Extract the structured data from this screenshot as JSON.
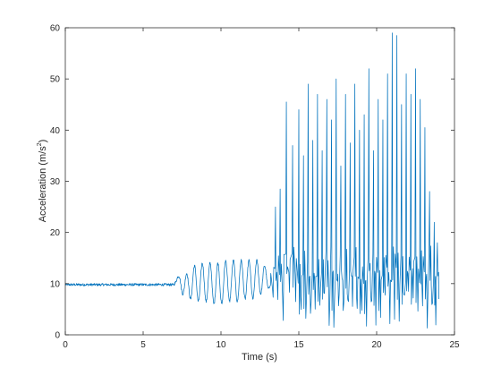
{
  "chart_data": {
    "type": "line",
    "title": "",
    "xlabel": "Time (s)",
    "ylabel": "Acceleration (m/s²)",
    "ylabel_base": "Acceleration (m/s",
    "ylabel_sup": "2",
    "ylabel_tail": ")",
    "xlim": [
      0,
      25
    ],
    "ylim": [
      0,
      60
    ],
    "xticks": [
      0,
      5,
      10,
      15,
      20,
      25
    ],
    "yticks": [
      0,
      10,
      20,
      30,
      40,
      50,
      60
    ],
    "grid": false,
    "legend": "none",
    "line_color": "#0072BD",
    "axis_color": "#262626",
    "series": [
      {
        "sample_interval_s": 0.02,
        "segments": [
          {
            "start_s": 0.0,
            "end_s": 7.0,
            "pattern": "noise",
            "baseline": 9.8,
            "amplitude": 0.25
          },
          {
            "start_s": 7.0,
            "end_s": 13.2,
            "pattern": "oscillation",
            "baseline": 10,
            "peaks": [
              [
                7.3,
                11.5
              ],
              [
                7.8,
                12.0
              ],
              [
                8.3,
                13.5
              ],
              [
                8.8,
                14.0
              ],
              [
                9.3,
                14.0
              ],
              [
                9.8,
                14.0
              ],
              [
                10.3,
                14.5
              ],
              [
                10.8,
                14.5
              ],
              [
                11.3,
                14.5
              ],
              [
                11.8,
                14.5
              ],
              [
                12.3,
                14.5
              ],
              [
                12.8,
                13.5
              ]
            ],
            "troughs": [
              [
                7.55,
                8.0
              ],
              [
                8.05,
                7.0
              ],
              [
                8.55,
                6.5
              ],
              [
                9.05,
                6.5
              ],
              [
                9.55,
                6.0
              ],
              [
                10.05,
                6.0
              ],
              [
                10.55,
                6.5
              ],
              [
                11.05,
                6.5
              ],
              [
                11.55,
                7.0
              ],
              [
                12.05,
                7.0
              ],
              [
                12.55,
                8.0
              ],
              [
                13.05,
                9.0
              ]
            ]
          },
          {
            "start_s": 13.2,
            "end_s": 24.0,
            "pattern": "impacts",
            "peaks": [
              [
                13.5,
                25.0
              ],
              [
                13.8,
                28.5
              ],
              [
                14.2,
                45.5
              ],
              [
                14.6,
                37.0
              ],
              [
                15.0,
                44.0
              ],
              [
                15.3,
                35.0
              ],
              [
                15.6,
                49.0
              ],
              [
                15.9,
                38.0
              ],
              [
                16.2,
                47.0
              ],
              [
                16.5,
                36.0
              ],
              [
                16.8,
                46.0
              ],
              [
                17.1,
                42.0
              ],
              [
                17.4,
                50.0
              ],
              [
                17.7,
                33.0
              ],
              [
                18.0,
                47.0
              ],
              [
                18.3,
                37.5
              ],
              [
                18.6,
                49.0
              ],
              [
                18.9,
                40.0
              ],
              [
                19.2,
                43.0
              ],
              [
                19.5,
                52.0
              ],
              [
                19.8,
                36.0
              ],
              [
                20.1,
                46.0
              ],
              [
                20.4,
                42.0
              ],
              [
                20.7,
                51.0
              ],
              [
                21.0,
                59.0
              ],
              [
                21.3,
                58.5
              ],
              [
                21.6,
                45.0
              ],
              [
                21.9,
                51.0
              ],
              [
                22.2,
                47.0
              ],
              [
                22.5,
                52.0
              ],
              [
                22.8,
                46.0
              ],
              [
                23.1,
                40.5
              ],
              [
                23.4,
                28.0
              ],
              [
                23.7,
                22.0
              ],
              [
                23.9,
                18.0
              ]
            ],
            "trough_range": [
              1.0,
              9.0
            ],
            "late_baseline": 12
          }
        ]
      }
    ]
  }
}
